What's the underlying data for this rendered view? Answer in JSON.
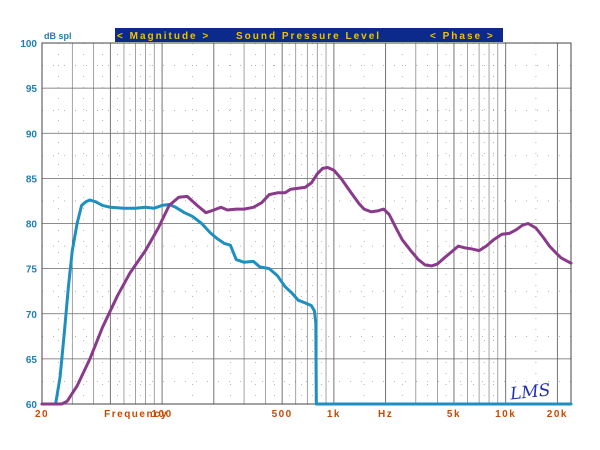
{
  "chart_data": {
    "type": "line",
    "ylabel": "dB spl",
    "xscale": "log",
    "xlim": [
      20,
      24000
    ],
    "ylim": [
      60,
      100
    ],
    "yticks": [
      60,
      65,
      70,
      75,
      80,
      85,
      90,
      95,
      100
    ],
    "header": {
      "left": "< Magnitude >",
      "center": "Sound Pressure Level",
      "right": "< Phase >"
    },
    "x_tick_labels": [
      {
        "text": "20",
        "at": 20
      },
      {
        "text": "Frequency",
        "at": 46
      },
      {
        "text": "100",
        "at": 100
      },
      {
        "text": "500",
        "at": 500
      },
      {
        "text": "1k",
        "at": 1000
      },
      {
        "text": "Hz",
        "at": 2000
      },
      {
        "text": "5k",
        "at": 5000
      },
      {
        "text": "10k",
        "at": 10000
      },
      {
        "text": "20k",
        "at": 20000
      }
    ],
    "logo": "LMS",
    "colors": {
      "grid": "#666666",
      "grid_minor": "#888888",
      "header_bg": "#0b2a8c",
      "header_text": "#f2c200",
      "axis_labels": "#1f7fb4",
      "x_labels": "#c84a00"
    },
    "series": [
      {
        "color": "#1f8fc0",
        "points": [
          [
            20,
            60
          ],
          [
            22,
            60
          ],
          [
            24,
            60
          ],
          [
            25.5,
            63
          ],
          [
            27,
            68
          ],
          [
            28.5,
            73
          ],
          [
            30,
            77
          ],
          [
            32,
            80
          ],
          [
            34,
            82
          ],
          [
            36,
            82.4
          ],
          [
            38,
            82.6
          ],
          [
            41,
            82.4
          ],
          [
            45,
            82
          ],
          [
            50,
            81.8
          ],
          [
            60,
            81.7
          ],
          [
            70,
            81.7
          ],
          [
            80,
            81.8
          ],
          [
            90,
            81.7
          ],
          [
            100,
            82
          ],
          [
            110,
            82.1
          ],
          [
            120,
            81.8
          ],
          [
            135,
            81.2
          ],
          [
            150,
            80.8
          ],
          [
            170,
            80
          ],
          [
            190,
            79
          ],
          [
            210,
            78.3
          ],
          [
            230,
            77.8
          ],
          [
            250,
            77.6
          ],
          [
            270,
            76
          ],
          [
            300,
            75.7
          ],
          [
            340,
            75.8
          ],
          [
            370,
            75.2
          ],
          [
            420,
            75
          ],
          [
            470,
            74.2
          ],
          [
            520,
            73
          ],
          [
            570,
            72.3
          ],
          [
            620,
            71.5
          ],
          [
            680,
            71.2
          ],
          [
            740,
            70.9
          ],
          [
            770,
            70.3
          ],
          [
            785,
            69
          ],
          [
            790,
            60
          ],
          [
            24000,
            60
          ]
        ]
      },
      {
        "color": "#8a3a8a",
        "points": [
          [
            20,
            60
          ],
          [
            26,
            60
          ],
          [
            28,
            60.3
          ],
          [
            32,
            62
          ],
          [
            38,
            65
          ],
          [
            45,
            68.5
          ],
          [
            55,
            72
          ],
          [
            65,
            74.5
          ],
          [
            80,
            77
          ],
          [
            95,
            79.5
          ],
          [
            110,
            82
          ],
          [
            125,
            82.9
          ],
          [
            140,
            83
          ],
          [
            160,
            82
          ],
          [
            180,
            81.2
          ],
          [
            200,
            81.5
          ],
          [
            220,
            81.8
          ],
          [
            240,
            81.5
          ],
          [
            270,
            81.6
          ],
          [
            300,
            81.6
          ],
          [
            340,
            81.8
          ],
          [
            380,
            82.3
          ],
          [
            420,
            83.2
          ],
          [
            470,
            83.4
          ],
          [
            520,
            83.4
          ],
          [
            560,
            83.8
          ],
          [
            620,
            83.9
          ],
          [
            680,
            84
          ],
          [
            740,
            84.5
          ],
          [
            800,
            85.5
          ],
          [
            860,
            86.1
          ],
          [
            920,
            86.2
          ],
          [
            1000,
            85.9
          ],
          [
            1100,
            85
          ],
          [
            1250,
            83.5
          ],
          [
            1400,
            82.2
          ],
          [
            1500,
            81.6
          ],
          [
            1650,
            81.3
          ],
          [
            1800,
            81.4
          ],
          [
            1950,
            81.6
          ],
          [
            2100,
            81
          ],
          [
            2300,
            79.5
          ],
          [
            2500,
            78.2
          ],
          [
            2800,
            77
          ],
          [
            3100,
            76
          ],
          [
            3400,
            75.4
          ],
          [
            3700,
            75.3
          ],
          [
            4000,
            75.5
          ],
          [
            4400,
            76.2
          ],
          [
            4800,
            76.8
          ],
          [
            5300,
            77.5
          ],
          [
            5800,
            77.3
          ],
          [
            6300,
            77.2
          ],
          [
            7000,
            77
          ],
          [
            7700,
            77.5
          ],
          [
            8500,
            78.2
          ],
          [
            9500,
            78.8
          ],
          [
            10500,
            78.9
          ],
          [
            11500,
            79.3
          ],
          [
            12500,
            79.8
          ],
          [
            13500,
            80
          ],
          [
            15000,
            79.5
          ],
          [
            16500,
            78.5
          ],
          [
            18000,
            77.5
          ],
          [
            19500,
            76.8
          ],
          [
            21000,
            76.2
          ],
          [
            24000,
            75.6
          ]
        ]
      }
    ]
  }
}
